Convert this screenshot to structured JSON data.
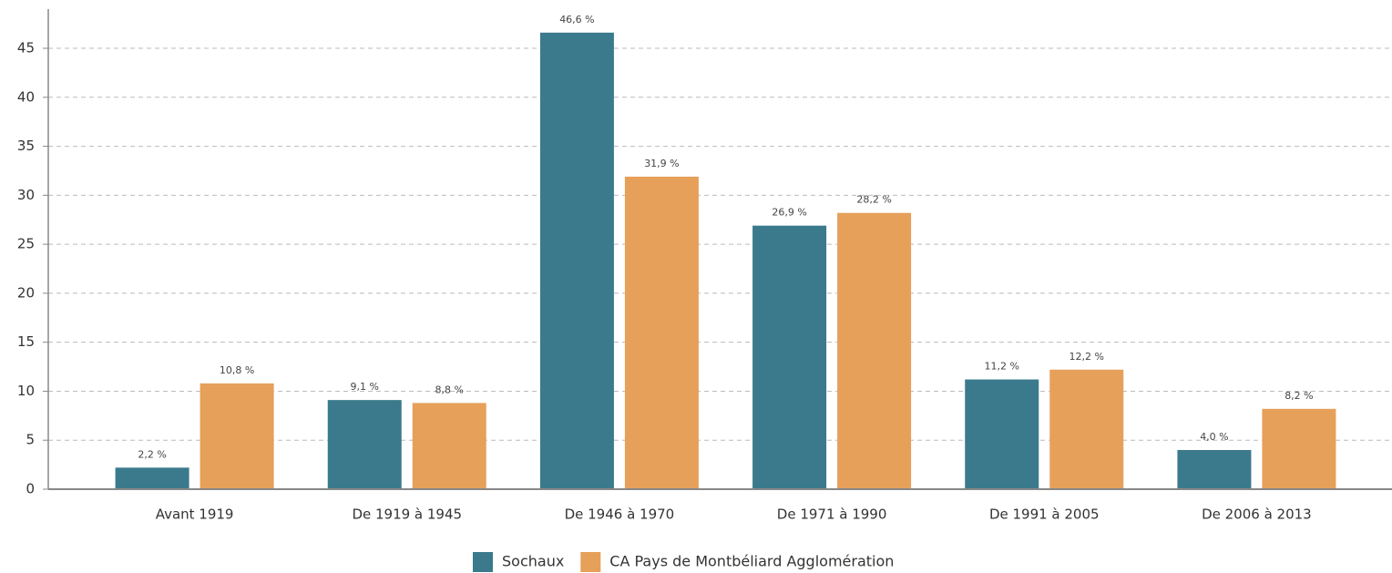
{
  "chart_data": {
    "type": "bar",
    "categories": [
      "Avant 1919",
      "De 1919 à 1945",
      "De 1946 à 1970",
      "De 1971 à 1990",
      "De 1991 à 2005",
      "De 2006 à 2013"
    ],
    "series": [
      {
        "name": "Sochaux",
        "color": "#3a7a8c",
        "values": [
          2.2,
          9.1,
          46.6,
          26.9,
          11.2,
          4.0
        ],
        "value_labels": [
          "2,2 %",
          "9,1 %",
          "46,6 %",
          "26,9 %",
          "11,2 %",
          "4,0 %"
        ]
      },
      {
        "name": "CA Pays de Montbéliard Agglomération",
        "color": "#e6a05a",
        "values": [
          10.8,
          8.8,
          31.9,
          28.2,
          12.2,
          8.2
        ],
        "value_labels": [
          "10,8 %",
          "8,8 %",
          "31,9 %",
          "28,2 %",
          "12,2 %",
          "8,2 %"
        ]
      }
    ],
    "ylim": [
      0,
      49
    ],
    "yticks": [
      0,
      5,
      10,
      15,
      20,
      25,
      30,
      35,
      40,
      45
    ],
    "grid": true,
    "legend": "bottom"
  }
}
